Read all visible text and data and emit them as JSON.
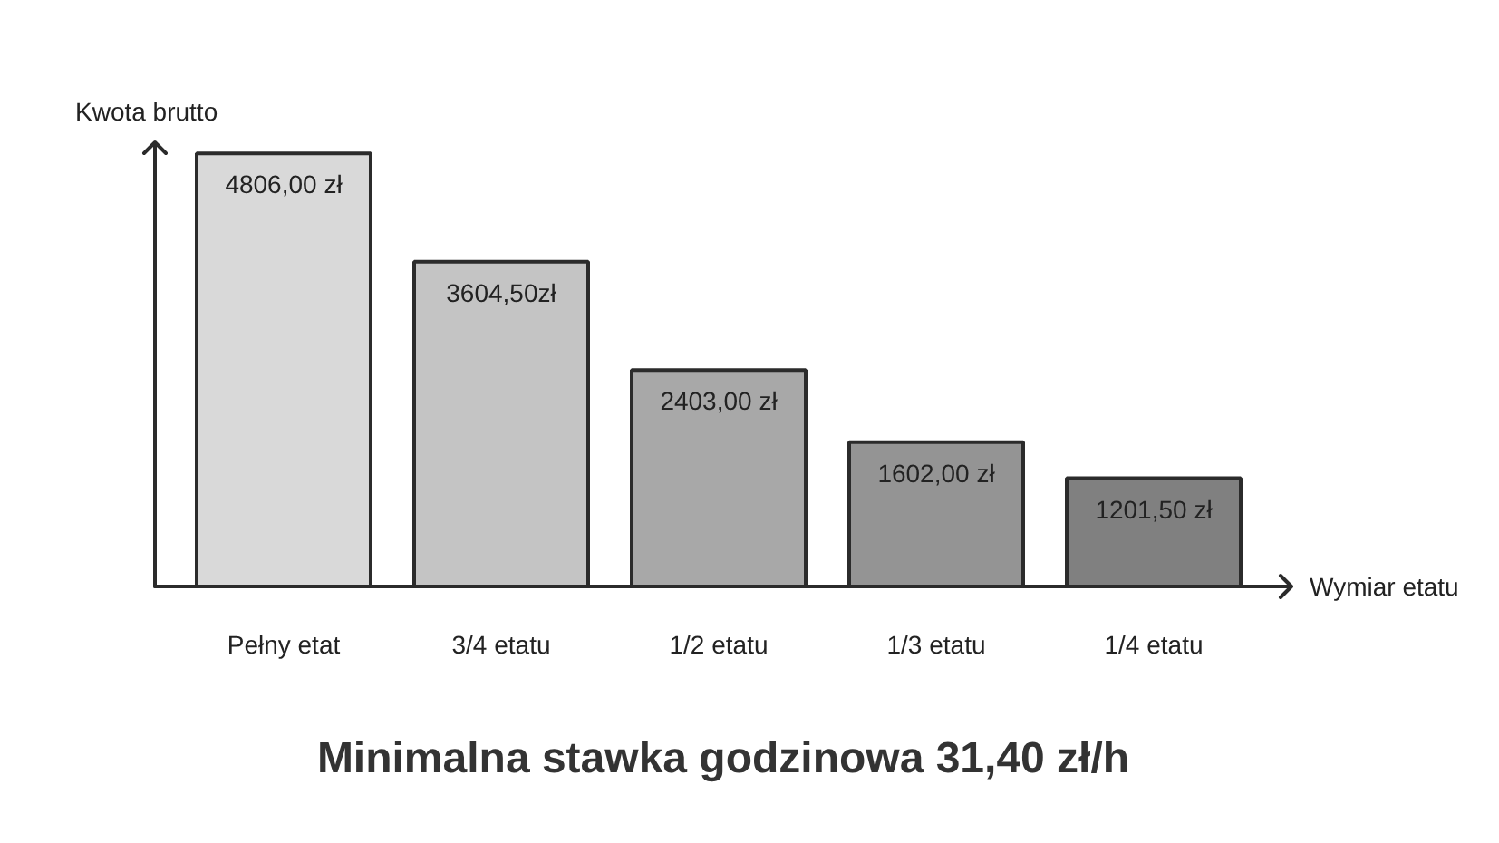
{
  "chart_data": {
    "type": "bar",
    "title": "Minimalna stawka godzinowa 31,40 zł/h",
    "xlabel": "Wymiar etatu",
    "ylabel": "Kwota brutto",
    "categories": [
      "Pełny etat",
      "3/4 etatu",
      "1/2 etatu",
      "1/3 etatu",
      "1/4 etatu"
    ],
    "values": [
      4806,
      3604.5,
      2403,
      1602,
      1201.5
    ],
    "value_labels": [
      "4806,00 zł",
      "3604,50zł",
      "2403,00 zł",
      "1602,00 zł",
      "1201,50 zł"
    ],
    "colors": [
      "#d9d9d9",
      "#c4c4c4",
      "#a8a8a8",
      "#949494",
      "#808080"
    ],
    "ylim": [
      0,
      4930
    ],
    "tick_labels": "x",
    "grid": false
  }
}
